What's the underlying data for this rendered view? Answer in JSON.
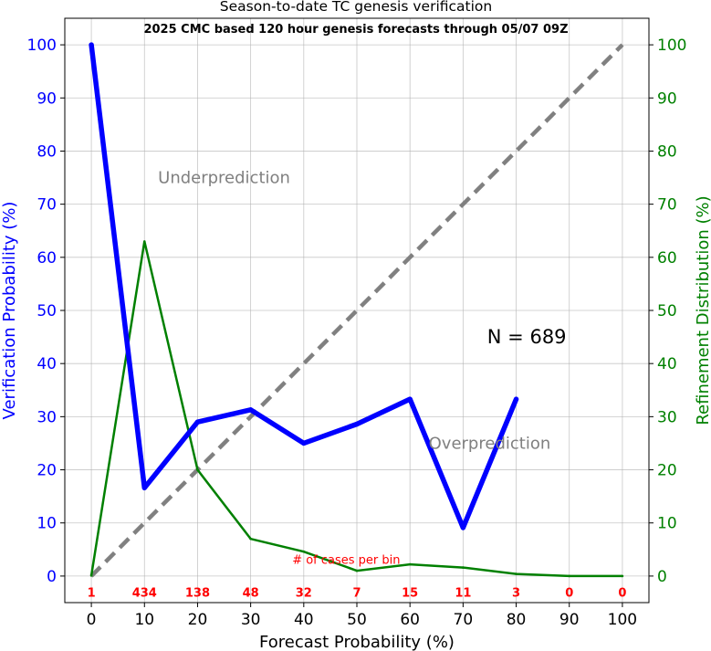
{
  "chart_data": {
    "type": "line",
    "title": "Season-to-date TC genesis verification",
    "subtitle": "2025 CMC based 120 hour genesis forecasts through 05/07 09Z",
    "xlabel": "Forecast Probability (%)",
    "ylabel_left": "Verification Probability (%)",
    "ylabel_right": "Refinement Distribution (%)",
    "xlim": [
      -5,
      105
    ],
    "ylim": [
      -5,
      105
    ],
    "x_ticks": [
      0,
      10,
      20,
      30,
      40,
      50,
      60,
      70,
      80,
      90,
      100
    ],
    "y_ticks": [
      0,
      10,
      20,
      30,
      40,
      50,
      60,
      70,
      80,
      90,
      100
    ],
    "grid": true,
    "colors": {
      "verification": "#0000ff",
      "refinement": "#008000",
      "diagonal": "#808080",
      "counts": "#ff0000",
      "annotation": "#808080"
    },
    "series": [
      {
        "key": "verification",
        "axis": "left",
        "x": [
          0,
          10,
          20,
          30,
          40,
          50,
          60,
          70,
          80
        ],
        "values": [
          100,
          16.6,
          29.0,
          31.3,
          25.0,
          28.6,
          33.3,
          9.1,
          33.3
        ]
      },
      {
        "key": "refinement",
        "axis": "right",
        "x": [
          0,
          10,
          20,
          30,
          40,
          50,
          60,
          70,
          80,
          90,
          100
        ],
        "values": [
          0.1,
          63.0,
          20.0,
          7.0,
          4.6,
          1.0,
          2.2,
          1.6,
          0.4,
          0.0,
          0.0
        ]
      }
    ],
    "perfect_reliability": {
      "x": [
        0,
        100
      ],
      "y": [
        0,
        100
      ]
    },
    "bin_counts_label": "# of cases per bin",
    "bin_counts": [
      {
        "x": 0,
        "label": "1"
      },
      {
        "x": 10,
        "label": "434"
      },
      {
        "x": 20,
        "label": "138"
      },
      {
        "x": 30,
        "label": "48"
      },
      {
        "x": 40,
        "label": "32"
      },
      {
        "x": 50,
        "label": "7"
      },
      {
        "x": 60,
        "label": "15"
      },
      {
        "x": 70,
        "label": "11"
      },
      {
        "x": 80,
        "label": "3"
      },
      {
        "x": 90,
        "label": "0"
      },
      {
        "x": 100,
        "label": "0"
      }
    ],
    "annotations": {
      "underprediction": {
        "text": "Underprediction",
        "x": 25,
        "y": 75
      },
      "overprediction": {
        "text": "Overprediction",
        "x": 75,
        "y": 25
      },
      "n_label": {
        "text": "N = 689",
        "x": 82,
        "y": 45
      }
    }
  }
}
